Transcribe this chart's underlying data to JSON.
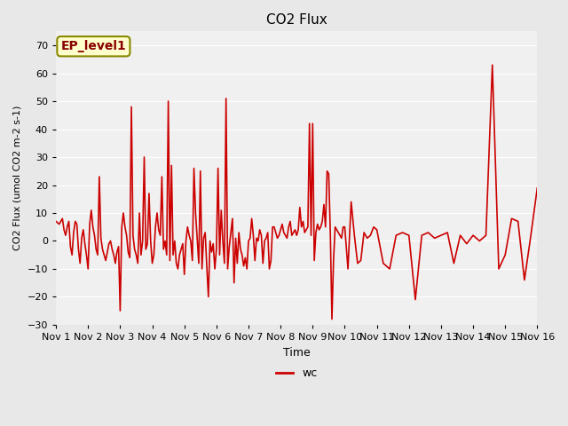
{
  "title": "CO2 Flux",
  "xlabel": "Time",
  "ylabel": "CO2 Flux (umol CO2 m-2 s-1)",
  "ylim": [
    -30,
    75
  ],
  "yticks": [
    -30,
    -20,
    -10,
    0,
    10,
    20,
    30,
    40,
    50,
    60,
    70
  ],
  "line_color": "#CC0000",
  "line_width": 1.2,
  "background_color": "#E8E8E8",
  "plot_bg_color": "#F0F0F0",
  "legend_label": "wc",
  "annotation_text": "EP_level1",
  "annotation_bg": "#FFFFCC",
  "annotation_border": "#888800",
  "annotation_text_color": "#880000",
  "x_ticklabels": [
    "Nov 1",
    "Nov 2",
    "Nov 3",
    "Nov 4",
    "Nov 5",
    "Nov 6",
    "Nov 7",
    "Nov 8",
    "Nov 9",
    "Nov 10",
    "Nov 11",
    "Nov 12",
    "Nov 13",
    "Nov 14",
    "Nov 15",
    "Nov 16"
  ],
  "x_values": [
    1,
    1.1,
    1.2,
    1.25,
    1.3,
    1.35,
    1.4,
    1.45,
    1.5,
    1.55,
    1.6,
    1.65,
    1.7,
    1.75,
    1.8,
    1.85,
    1.9,
    1.95,
    2.0,
    2.05,
    2.1,
    2.15,
    2.2,
    2.25,
    2.3,
    2.35,
    2.4,
    2.45,
    2.5,
    2.55,
    2.6,
    2.65,
    2.7,
    2.75,
    2.8,
    2.85,
    2.9,
    2.95,
    3.0,
    3.05,
    3.1,
    3.15,
    3.2,
    3.25,
    3.3,
    3.35,
    3.4,
    3.45,
    3.5,
    3.55,
    3.6,
    3.65,
    3.7,
    3.75,
    3.8,
    3.85,
    3.9,
    3.95,
    4.0,
    4.05,
    4.1,
    4.15,
    4.2,
    4.25,
    4.3,
    4.35,
    4.4,
    4.45,
    4.5,
    4.55,
    4.6,
    4.65,
    4.7,
    4.75,
    4.8,
    4.85,
    4.9,
    4.95,
    5.0,
    5.05,
    5.1,
    5.15,
    5.2,
    5.25,
    5.3,
    5.35,
    5.4,
    5.45,
    5.5,
    5.55,
    5.6,
    5.65,
    5.7,
    5.75,
    5.8,
    5.85,
    5.9,
    5.95,
    6.0,
    6.05,
    6.1,
    6.15,
    6.2,
    6.25,
    6.3,
    6.35,
    6.4,
    6.45,
    6.5,
    6.55,
    6.6,
    6.65,
    6.7,
    6.75,
    6.8,
    6.85,
    6.9,
    6.95,
    7.0,
    7.05,
    7.1,
    7.15,
    7.2,
    7.25,
    7.3,
    7.35,
    7.4,
    7.45,
    7.5,
    7.55,
    7.6,
    7.65,
    7.7,
    7.75,
    7.8,
    7.85,
    7.9,
    7.95,
    8.0,
    8.05,
    8.1,
    8.15,
    8.2,
    8.25,
    8.3,
    8.35,
    8.4,
    8.45,
    8.5,
    8.55,
    8.6,
    8.65,
    8.7,
    8.75,
    8.8,
    8.85,
    8.9,
    8.95,
    9.0,
    9.05,
    9.1,
    9.15,
    9.2,
    9.25,
    9.3,
    9.35,
    9.4,
    9.45,
    9.5,
    9.55,
    9.6,
    9.65,
    9.7,
    9.75,
    9.8,
    9.85,
    9.9,
    9.95,
    10.0,
    10.1,
    10.2,
    10.3,
    10.4,
    10.5,
    10.6,
    10.7,
    10.8,
    10.9,
    11.0,
    11.2,
    11.4,
    11.6,
    11.8,
    12.0,
    12.2,
    12.4,
    12.6,
    12.8,
    13.0,
    13.2,
    13.4,
    13.6,
    13.8,
    14.0,
    14.2,
    14.4,
    14.6,
    14.8,
    15.0,
    15.2,
    15.4,
    15.6,
    15.8,
    16.0
  ],
  "y_values": [
    7,
    6,
    8,
    4,
    2,
    5,
    7,
    -2,
    -5,
    3,
    7,
    6,
    -3,
    -8,
    1,
    4,
    -1,
    -5,
    -10,
    6,
    11,
    5,
    2,
    -3,
    -5,
    23,
    1,
    -3,
    -5,
    -7,
    -4,
    -1,
    0,
    -3,
    -5,
    -8,
    -4,
    -2,
    -25,
    5,
    10,
    5,
    2,
    -4,
    -6,
    48,
    2,
    -3,
    -5,
    -8,
    10,
    -5,
    0,
    30,
    -3,
    -1,
    17,
    0,
    -8,
    -5,
    5,
    10,
    4,
    2,
    23,
    -3,
    0,
    -5,
    50,
    -7,
    27,
    -5,
    0,
    -8,
    -10,
    -5,
    -3,
    -1,
    -12,
    0,
    5,
    2,
    0,
    -7,
    26,
    10,
    1,
    -8,
    25,
    -10,
    1,
    3,
    -9,
    -20,
    0,
    -4,
    -1,
    -10,
    -3,
    26,
    -5,
    11,
    0,
    -8,
    51,
    -10,
    -2,
    3,
    8,
    -15,
    1,
    -8,
    3,
    -3,
    -5,
    -9,
    -6,
    -10,
    0,
    1,
    8,
    2,
    -7,
    1,
    0,
    4,
    2,
    -8,
    0,
    1,
    3,
    -10,
    -7,
    5,
    5,
    3,
    1,
    2,
    4,
    6,
    3,
    2,
    1,
    5,
    7,
    2,
    3,
    4,
    2,
    4,
    12,
    5,
    7,
    3,
    4,
    5,
    42,
    2,
    42,
    -7,
    3,
    6,
    4,
    5,
    7,
    13,
    5,
    25,
    24,
    3,
    -28,
    -7,
    5,
    4,
    3,
    2,
    1,
    5,
    5,
    -10,
    14,
    2,
    -8,
    -7,
    3,
    1,
    2,
    5,
    4,
    -8,
    -10,
    2,
    3,
    2,
    -21,
    2,
    3,
    1,
    2,
    3,
    -8,
    2,
    -1,
    2,
    0,
    2,
    63,
    -10,
    -5,
    8,
    7,
    -14,
    2,
    19
  ]
}
